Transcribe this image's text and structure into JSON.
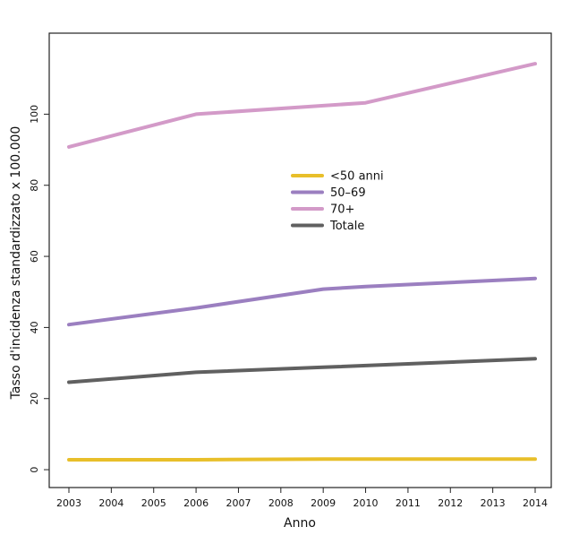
{
  "chart_data": {
    "type": "line",
    "title": "",
    "xlabel": "Anno",
    "ylabel": "Tasso d'incidenza standardizzato x 100.000",
    "x": [
      "2003",
      "2004",
      "2005",
      "2006",
      "2007",
      "2008",
      "2009",
      "2010",
      "2011",
      "2012",
      "2013",
      "2014"
    ],
    "xlim": [
      2003,
      2014
    ],
    "ylim": [
      -2,
      118
    ],
    "yticks": [
      "0",
      "20",
      "40",
      "60",
      "80",
      "100"
    ],
    "grid": false,
    "legend_position": "center",
    "series": [
      {
        "name": "<50 anni",
        "color": "#e8bf2a",
        "points": [
          [
            2003,
            2.8
          ],
          [
            2006,
            2.8
          ],
          [
            2009,
            3.0
          ],
          [
            2014,
            3.0
          ]
        ]
      },
      {
        "name": "50–69",
        "color": "#9b7fc0",
        "points": [
          [
            2003,
            40.8
          ],
          [
            2006,
            45.5
          ],
          [
            2009,
            50.8
          ],
          [
            2010,
            51.5
          ],
          [
            2014,
            53.8
          ]
        ]
      },
      {
        "name": "70+",
        "color": "#d39ac8",
        "points": [
          [
            2003,
            90.8
          ],
          [
            2006,
            100.0
          ],
          [
            2009,
            102.4
          ],
          [
            2010,
            103.2
          ],
          [
            2014,
            114.2
          ]
        ]
      },
      {
        "name": "Totale",
        "color": "#606060",
        "points": [
          [
            2003,
            24.6
          ],
          [
            2006,
            27.4
          ],
          [
            2009,
            28.8
          ],
          [
            2014,
            31.2
          ]
        ]
      }
    ]
  }
}
